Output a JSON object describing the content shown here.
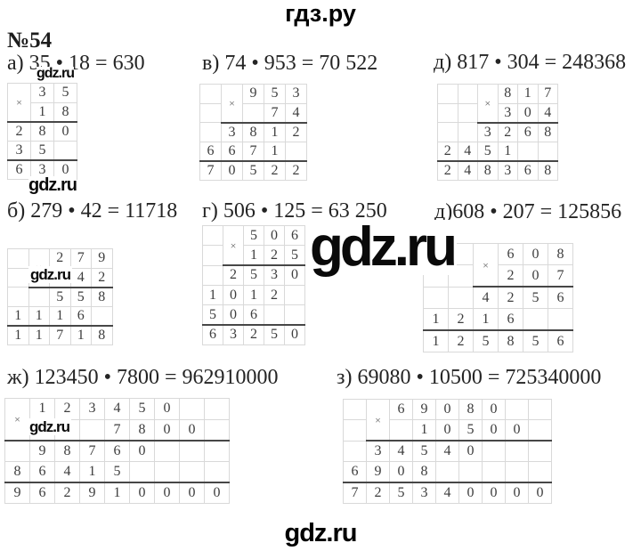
{
  "page": {
    "top_logo": "гдз.ру",
    "bottom_logo": "gdz.ru",
    "task_number": "№54"
  },
  "watermarks": {
    "above_a": "gdz.ru",
    "below_a": "gdz.ru",
    "in_b": "gdz.ru",
    "big_center": "gdz.ru",
    "in_zh": "gdz.ru"
  },
  "colors": {
    "ink": "#3d3d3d",
    "equation_text": "#242424",
    "grid_border": "#d9d9d9",
    "heavy_rule": "#474747",
    "logo": "#000000",
    "background": "#ffffff"
  },
  "problems": [
    {
      "id": "a",
      "equation": "а) 35 • 18 = 630",
      "grid": {
        "multiply_col": 0,
        "rows": [
          [
            "×",
            "3",
            "5"
          ],
          [
            "",
            "1",
            "8"
          ],
          [
            "2",
            "8",
            "0"
          ],
          [
            "3",
            "5",
            ""
          ],
          [
            "6",
            "3",
            "0"
          ]
        ],
        "lines": [
          {
            "after_row": 1,
            "from_col": 0
          },
          {
            "after_row": 3,
            "from_col": 0
          }
        ]
      }
    },
    {
      "id": "v",
      "equation": "в) 74 • 953 = 70 522",
      "grid": {
        "multiply_col": 1,
        "rows": [
          [
            "",
            "×",
            "9",
            "5",
            "3"
          ],
          [
            "",
            "",
            "",
            "7",
            "4"
          ],
          [
            "",
            "3",
            "8",
            "1",
            "2"
          ],
          [
            "6",
            "6",
            "7",
            "1",
            ""
          ],
          [
            "7",
            "0",
            "5",
            "2",
            "2"
          ]
        ],
        "lines": [
          {
            "after_row": 1,
            "from_col": 1
          },
          {
            "after_row": 3,
            "from_col": 0
          }
        ]
      }
    },
    {
      "id": "d1",
      "equation": "д) 817 • 304 = 248368",
      "grid": {
        "multiply_col": 2,
        "rows": [
          [
            "",
            "",
            "×",
            "8",
            "1",
            "7"
          ],
          [
            "",
            "",
            "",
            "3",
            "0",
            "4"
          ],
          [
            "",
            "",
            "3",
            "2",
            "6",
            "8"
          ],
          [
            "2",
            "4",
            "5",
            "1",
            "",
            ""
          ],
          [
            "2",
            "4",
            "8",
            "3",
            "6",
            "8"
          ]
        ],
        "lines": [
          {
            "after_row": 1,
            "from_col": 2
          },
          {
            "after_row": 3,
            "from_col": 0
          }
        ]
      }
    },
    {
      "id": "b",
      "equation": "б) 279 • 42 = 11718",
      "grid": {
        "multiply_col": 1,
        "rows": [
          [
            "",
            "×",
            "2",
            "7",
            "9"
          ],
          [
            "",
            "",
            "",
            "4",
            "2"
          ],
          [
            "",
            "",
            "5",
            "5",
            "8"
          ],
          [
            "1",
            "1",
            "1",
            "6",
            ""
          ],
          [
            "1",
            "1",
            "7",
            "1",
            "8"
          ]
        ],
        "lines": [
          {
            "after_row": 1,
            "from_col": 1
          },
          {
            "after_row": 3,
            "from_col": 0
          }
        ]
      }
    },
    {
      "id": "g",
      "equation": "г) 506 • 125 = 63 250",
      "grid": {
        "multiply_col": 1,
        "rows": [
          [
            "",
            "×",
            "5",
            "0",
            "6"
          ],
          [
            "",
            "",
            "1",
            "2",
            "5"
          ],
          [
            "",
            "2",
            "5",
            "3",
            "0"
          ],
          [
            "1",
            "0",
            "1",
            "2",
            ""
          ],
          [
            "5",
            "0",
            "6",
            "",
            ""
          ],
          [
            "6",
            "3",
            "2",
            "5",
            "0"
          ]
        ],
        "lines": [
          {
            "after_row": 1,
            "from_col": 1
          },
          {
            "after_row": 4,
            "from_col": 0
          }
        ]
      }
    },
    {
      "id": "d2",
      "equation": "д)608 • 207 = 125856",
      "grid": {
        "multiply_col": 2,
        "rows": [
          [
            "",
            "",
            "×",
            "6",
            "0",
            "8"
          ],
          [
            "",
            "",
            "",
            "2",
            "0",
            "7"
          ],
          [
            "",
            "",
            "4",
            "2",
            "5",
            "6"
          ],
          [
            "1",
            "2",
            "1",
            "6",
            "",
            ""
          ],
          [
            "1",
            "2",
            "5",
            "8",
            "5",
            "6"
          ]
        ],
        "lines": [
          {
            "after_row": 1,
            "from_col": 2
          },
          {
            "after_row": 3,
            "from_col": 0
          }
        ]
      }
    },
    {
      "id": "zh",
      "equation": "ж) 123450 • 7800 = 962910000",
      "grid": {
        "multiply_col": 0,
        "rows": [
          [
            "×",
            "1",
            "2",
            "3",
            "4",
            "5",
            "0",
            "",
            ""
          ],
          [
            "",
            "",
            "",
            "",
            "7",
            "8",
            "0",
            "0",
            ""
          ],
          [
            "",
            "9",
            "8",
            "7",
            "6",
            "0",
            "",
            "",
            ""
          ],
          [
            "8",
            "6",
            "4",
            "1",
            "5",
            "",
            "",
            "",
            ""
          ],
          [
            "9",
            "6",
            "2",
            "9",
            "1",
            "0",
            "0",
            "0",
            "0"
          ]
        ],
        "lines": [
          {
            "after_row": 1,
            "from_col": 0
          },
          {
            "after_row": 3,
            "from_col": 0
          }
        ]
      }
    },
    {
      "id": "z",
      "equation": "з) 69080 • 10500 = 725340000",
      "grid": {
        "multiply_col": 1,
        "rows": [
          [
            "",
            "×",
            "6",
            "9",
            "0",
            "8",
            "0",
            "",
            ""
          ],
          [
            "",
            "",
            "",
            "1",
            "0",
            "5",
            "0",
            "0",
            ""
          ],
          [
            "",
            "3",
            "4",
            "5",
            "4",
            "0",
            "",
            "",
            ""
          ],
          [
            "6",
            "9",
            "0",
            "8",
            "",
            "",
            "",
            "",
            ""
          ],
          [
            "7",
            "2",
            "5",
            "3",
            "4",
            "0",
            "0",
            "0",
            "0"
          ]
        ],
        "lines": [
          {
            "after_row": 1,
            "from_col": 1
          },
          {
            "after_row": 3,
            "from_col": 0
          }
        ]
      }
    }
  ]
}
